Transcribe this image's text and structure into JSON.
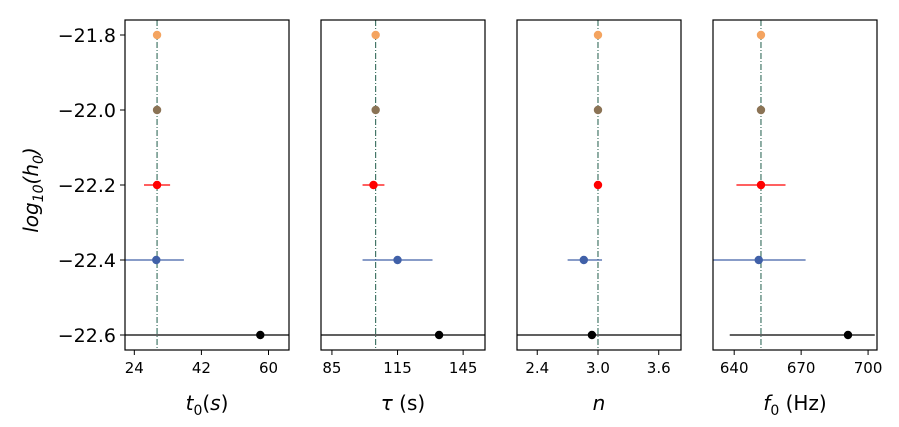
{
  "chart_data": [
    {
      "type": "scatter",
      "ylabel": "log10(h0)",
      "xlabel": "t0(s)",
      "xlim": [
        21.5,
        65.5
      ],
      "ylim": [
        -22.64,
        -21.76
      ],
      "xticks": [
        "24",
        "42",
        "60"
      ],
      "yticks": [
        "−21.8",
        "−22.0",
        "−22.2",
        "−22.4",
        "−22.6"
      ],
      "true_value": 30.1,
      "points": [
        {
          "x": 30.1,
          "y": -21.8,
          "xerr_low": 0,
          "xerr_high": 0,
          "color": "#f4a460"
        },
        {
          "x": 30.1,
          "y": -22.0,
          "xerr_low": 0,
          "xerr_high": 0,
          "color": "#8b7355"
        },
        {
          "x": 30.1,
          "y": -22.2,
          "xerr_low": 3.5,
          "xerr_high": 3.5,
          "color": "#ff0000"
        },
        {
          "x": 29.9,
          "y": -22.4,
          "xerr_low": 8.4,
          "xerr_high": 7.4,
          "color": "#4060a8"
        },
        {
          "x": 57.8,
          "y": -22.6,
          "xerr_low": 36.3,
          "xerr_high": 7.7,
          "color": "#000000"
        }
      ]
    },
    {
      "type": "scatter",
      "xlabel": "τ (s)",
      "xlim": [
        80,
        155
      ],
      "ylim": [
        -22.64,
        -21.76
      ],
      "xticks": [
        "85",
        "115",
        "145"
      ],
      "true_value": 105,
      "points": [
        {
          "x": 105,
          "y": -21.8,
          "xerr_low": 0,
          "xerr_high": 0,
          "color": "#f4a460"
        },
        {
          "x": 105,
          "y": -22.0,
          "xerr_low": 0,
          "xerr_high": 0,
          "color": "#8b7355"
        },
        {
          "x": 104,
          "y": -22.2,
          "xerr_low": 5,
          "xerr_high": 5,
          "color": "#ff0000"
        },
        {
          "x": 115,
          "y": -22.4,
          "xerr_low": 16,
          "xerr_high": 16,
          "color": "#4060a8"
        },
        {
          "x": 134,
          "y": -22.6,
          "xerr_low": 54,
          "xerr_high": 21,
          "color": "#000000"
        }
      ]
    },
    {
      "type": "scatter",
      "xlabel": "n",
      "xlim": [
        2.2,
        3.82
      ],
      "ylim": [
        -22.64,
        -21.76
      ],
      "xticks": [
        "2.4",
        "3.0",
        "3.6"
      ],
      "true_value": 3.0,
      "points": [
        {
          "x": 3.0,
          "y": -21.8,
          "xerr_low": 0,
          "xerr_high": 0,
          "color": "#f4a460"
        },
        {
          "x": 3.0,
          "y": -22.0,
          "xerr_low": 0,
          "xerr_high": 0,
          "color": "#8b7355"
        },
        {
          "x": 3.0,
          "y": -22.2,
          "xerr_low": 0.04,
          "xerr_high": 0.04,
          "color": "#ff0000"
        },
        {
          "x": 2.86,
          "y": -22.4,
          "xerr_low": 0.16,
          "xerr_high": 0.18,
          "color": "#4060a8"
        },
        {
          "x": 2.94,
          "y": -22.6,
          "xerr_low": 0.74,
          "xerr_high": 0.88,
          "color": "#000000"
        }
      ]
    },
    {
      "type": "scatter",
      "xlabel": "f0 (Hz)",
      "xlim": [
        630.5,
        704
      ],
      "ylim": [
        -22.64,
        -21.76
      ],
      "xticks": [
        "640",
        "670",
        "700"
      ],
      "true_value": 652,
      "points": [
        {
          "x": 652,
          "y": -21.8,
          "xerr_low": 0,
          "xerr_high": 0,
          "color": "#f4a460"
        },
        {
          "x": 652,
          "y": -22.0,
          "xerr_low": 0,
          "xerr_high": 0,
          "color": "#8b7355"
        },
        {
          "x": 652,
          "y": -22.2,
          "xerr_low": 11,
          "xerr_high": 11,
          "color": "#ff0000"
        },
        {
          "x": 651,
          "y": -22.4,
          "xerr_low": 21,
          "xerr_high": 21,
          "color": "#4060a8"
        },
        {
          "x": 691,
          "y": -22.6,
          "xerr_low": 53,
          "xerr_high": 12,
          "color": "#000000"
        }
      ]
    }
  ]
}
